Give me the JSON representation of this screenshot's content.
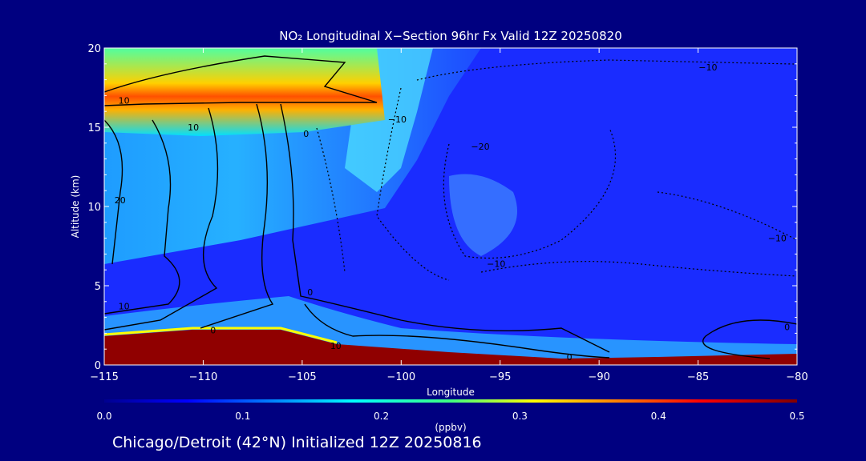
{
  "chart_data": {
    "type": "heatmap",
    "title": "NO₂ Longitudinal X−Section 96hr  Fx Valid 12Z 20250820",
    "xlabel": "Longitude",
    "ylabel": "Altitude (km)",
    "xlim": [
      -115,
      -80
    ],
    "ylim": [
      0,
      20
    ],
    "xticks": [
      -115,
      -110,
      -105,
      -100,
      -95,
      -90,
      -85,
      -80
    ],
    "xtick_labels": [
      "−115",
      "−110",
      "−105",
      "−100",
      "−95",
      "−90",
      "−85",
      "−80"
    ],
    "yticks": [
      0,
      5,
      10,
      15,
      20
    ],
    "ytick_labels": [
      "0",
      "5",
      "10",
      "15",
      "20"
    ],
    "colorbar": {
      "label": "(ppbv)",
      "min": 0.0,
      "max": 0.5,
      "ticks": [
        0.0,
        0.1,
        0.2,
        0.3,
        0.4,
        0.5
      ],
      "tick_labels": [
        "0.0",
        "0.1",
        "0.2",
        "0.3",
        "0.4",
        "0.5"
      ]
    },
    "contour_labels": [
      {
        "text": "10",
        "lon": -114.0,
        "alt": 16.7
      },
      {
        "text": "10",
        "lon": -110.5,
        "alt": 15.0
      },
      {
        "text": "20",
        "lon": -114.2,
        "alt": 10.4
      },
      {
        "text": "10",
        "lon": -114.0,
        "alt": 3.7
      },
      {
        "text": "0",
        "lon": -109.5,
        "alt": 2.2
      },
      {
        "text": "0",
        "lon": -104.6,
        "alt": 4.6
      },
      {
        "text": "0",
        "lon": -104.8,
        "alt": 14.6
      },
      {
        "text": "−10",
        "lon": -100.2,
        "alt": 15.5
      },
      {
        "text": "−10",
        "lon": -84.5,
        "alt": 18.8
      },
      {
        "text": "−20",
        "lon": -96.0,
        "alt": 13.8
      },
      {
        "text": "−10",
        "lon": -95.2,
        "alt": 6.4
      },
      {
        "text": "−10",
        "lon": -81.0,
        "alt": 8.0
      },
      {
        "text": "0",
        "lon": -80.5,
        "alt": 2.4
      },
      {
        "text": "0",
        "lon": -91.5,
        "alt": 0.5
      },
      {
        "text": "10",
        "lon": -103.3,
        "alt": 1.2
      }
    ]
  },
  "footer": "Chicago/Detroit (42°N) Initialized 12Z 20250816",
  "colors": {
    "background": "#000080",
    "plot_base": "#1a1aff"
  }
}
